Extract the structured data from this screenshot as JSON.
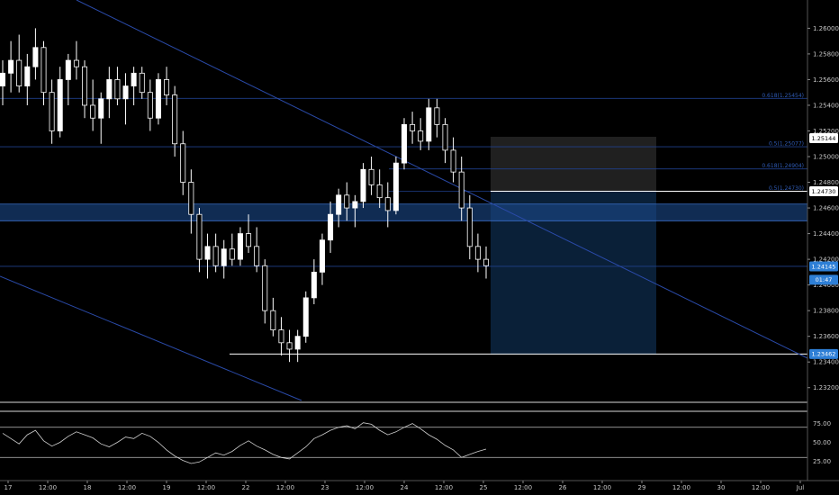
{
  "colors": {
    "background": "#000000",
    "candle_up": "#ffffff",
    "candle_down": "#ffffff",
    "trendline": "#2a4aa8",
    "fib_line": "#1f3f8a",
    "zone_fill": "#1a4a8a",
    "rsi_line": "#d0d0d0",
    "tag_blue": "#2e7fd6",
    "tag_white": "#ffffff"
  },
  "chart_data": {
    "type": "candlestick",
    "price_axis": {
      "min": 1.231,
      "max": 1.2615,
      "ticks": [
        "1.26000",
        "1.25800",
        "1.25600",
        "1.25400",
        "1.25200",
        "1.25000",
        "1.24800",
        "1.24600",
        "1.24400",
        "1.24200",
        "1.24000",
        "1.23800",
        "1.23600",
        "1.23400",
        "1.23200"
      ]
    },
    "time_axis": {
      "labels": [
        "17",
        "12:00",
        "18",
        "12:00",
        "19",
        "12:00",
        "22",
        "12:00",
        "23",
        "12:00",
        "24",
        "12:00",
        "25",
        "12:00",
        "26",
        "12:00",
        "29",
        "12:00",
        "30",
        "12:00",
        "Jul"
      ]
    },
    "price_tags": [
      {
        "text": "1.25144",
        "value": 1.25144,
        "style": "white"
      },
      {
        "text": "1.24730",
        "value": 1.2473,
        "style": "white"
      },
      {
        "text": "1.24145",
        "value": 1.24145,
        "style": "blue"
      },
      {
        "text": "01:47",
        "value": 1.2404,
        "style": "blue"
      },
      {
        "text": "1.23462",
        "value": 1.23462,
        "style": "blue"
      }
    ],
    "fib_levels": [
      {
        "label": "0.618(1.25454)",
        "value": 1.25454
      },
      {
        "label": "0.5(1.25077)",
        "value": 1.25077
      },
      {
        "label": "0.618(1.24904)",
        "value": 1.24904
      },
      {
        "label": "0.5(1.24730)",
        "value": 1.2473
      }
    ],
    "horizontal_lines": [
      1.25454,
      1.25077,
      1.24145
    ],
    "support_line": 1.23462,
    "zone": {
      "top": 1.2463,
      "bottom": 1.245
    },
    "rsi": {
      "ticks": [
        "75.00",
        "50.00",
        "25.00"
      ],
      "levels": [
        70,
        30
      ],
      "min": 10,
      "max": 90
    },
    "candles": [
      [
        1.2555,
        1.2575,
        1.254,
        1.2565
      ],
      [
        1.2565,
        1.259,
        1.255,
        1.2575
      ],
      [
        1.2575,
        1.2595,
        1.255,
        1.2555
      ],
      [
        1.2555,
        1.258,
        1.254,
        1.257
      ],
      [
        1.257,
        1.26,
        1.256,
        1.2585
      ],
      [
        1.2585,
        1.259,
        1.254,
        1.255
      ],
      [
        1.255,
        1.256,
        1.251,
        1.252
      ],
      [
        1.252,
        1.257,
        1.2515,
        1.256
      ],
      [
        1.256,
        1.258,
        1.254,
        1.2575
      ],
      [
        1.2575,
        1.259,
        1.256,
        1.257
      ],
      [
        1.257,
        1.2575,
        1.253,
        1.254
      ],
      [
        1.254,
        1.256,
        1.252,
        1.253
      ],
      [
        1.253,
        1.255,
        1.251,
        1.2545
      ],
      [
        1.2545,
        1.257,
        1.253,
        1.256
      ],
      [
        1.256,
        1.257,
        1.254,
        1.2545
      ],
      [
        1.2545,
        1.2565,
        1.2525,
        1.2555
      ],
      [
        1.2555,
        1.257,
        1.254,
        1.2565
      ],
      [
        1.2565,
        1.257,
        1.2545,
        1.255
      ],
      [
        1.255,
        1.256,
        1.252,
        1.253
      ],
      [
        1.253,
        1.2565,
        1.2525,
        1.256
      ],
      [
        1.256,
        1.257,
        1.254,
        1.2548
      ],
      [
        1.2548,
        1.2555,
        1.25,
        1.251
      ],
      [
        1.251,
        1.252,
        1.247,
        1.248
      ],
      [
        1.248,
        1.249,
        1.244,
        1.2455
      ],
      [
        1.2455,
        1.246,
        1.241,
        1.242
      ],
      [
        1.242,
        1.244,
        1.2405,
        1.243
      ],
      [
        1.243,
        1.244,
        1.241,
        1.2415
      ],
      [
        1.2415,
        1.2435,
        1.2405,
        1.2428
      ],
      [
        1.2428,
        1.244,
        1.2415,
        1.242
      ],
      [
        1.242,
        1.2445,
        1.2415,
        1.244
      ],
      [
        1.244,
        1.2455,
        1.2425,
        1.243
      ],
      [
        1.243,
        1.2445,
        1.241,
        1.2415
      ],
      [
        1.2415,
        1.242,
        1.237,
        1.238
      ],
      [
        1.238,
        1.239,
        1.236,
        1.2365
      ],
      [
        1.2365,
        1.2375,
        1.2345,
        1.2355
      ],
      [
        1.2355,
        1.2365,
        1.234,
        1.235
      ],
      [
        1.235,
        1.2365,
        1.234,
        1.236
      ],
      [
        1.236,
        1.2395,
        1.2355,
        1.239
      ],
      [
        1.239,
        1.242,
        1.2385,
        1.241
      ],
      [
        1.241,
        1.244,
        1.24,
        1.2435
      ],
      [
        1.2435,
        1.2465,
        1.2425,
        1.2455
      ],
      [
        1.2455,
        1.2475,
        1.2445,
        1.247
      ],
      [
        1.247,
        1.248,
        1.245,
        1.246
      ],
      [
        1.246,
        1.247,
        1.2445,
        1.2465
      ],
      [
        1.2465,
        1.2495,
        1.246,
        1.249
      ],
      [
        1.249,
        1.25,
        1.247,
        1.2478
      ],
      [
        1.2478,
        1.249,
        1.246,
        1.2468
      ],
      [
        1.2468,
        1.248,
        1.2445,
        1.2458
      ],
      [
        1.2458,
        1.25,
        1.2455,
        1.2495
      ],
      [
        1.2495,
        1.253,
        1.249,
        1.2525
      ],
      [
        1.2525,
        1.2535,
        1.251,
        1.252
      ],
      [
        1.252,
        1.253,
        1.2505,
        1.2512
      ],
      [
        1.2512,
        1.2545,
        1.2505,
        1.2538
      ],
      [
        1.2538,
        1.2545,
        1.2515,
        1.2525
      ],
      [
        1.2525,
        1.253,
        1.2495,
        1.2505
      ],
      [
        1.2505,
        1.2515,
        1.248,
        1.2488
      ],
      [
        1.2488,
        1.25,
        1.245,
        1.246
      ],
      [
        1.246,
        1.247,
        1.242,
        1.243
      ],
      [
        1.243,
        1.244,
        1.241,
        1.242
      ],
      [
        1.242,
        1.243,
        1.2405,
        1.2415
      ]
    ],
    "rsi_values": [
      62,
      55,
      48,
      60,
      66,
      52,
      45,
      50,
      58,
      64,
      60,
      56,
      48,
      44,
      50,
      57,
      55,
      62,
      58,
      50,
      40,
      32,
      26,
      22,
      24,
      30,
      36,
      33,
      38,
      46,
      52,
      45,
      40,
      34,
      30,
      28,
      36,
      44,
      55,
      60,
      66,
      70,
      72,
      68,
      76,
      74,
      66,
      60,
      64,
      70,
      75,
      68,
      60,
      54,
      46,
      40,
      30,
      34,
      38,
      41
    ]
  }
}
